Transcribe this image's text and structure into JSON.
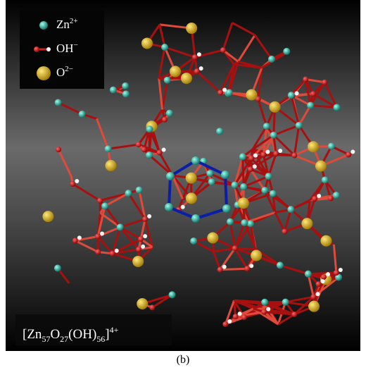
{
  "legend": {
    "items": [
      {
        "label": "Zn",
        "sup": "2+"
      },
      {
        "label": "OH",
        "sup": "−"
      },
      {
        "label": "O",
        "sup": "2−"
      }
    ]
  },
  "formula": [
    "[Zn",
    "57",
    "O",
    "27",
    "(OH)",
    "56",
    "]",
    "4+"
  ],
  "caption": "(b)"
}
